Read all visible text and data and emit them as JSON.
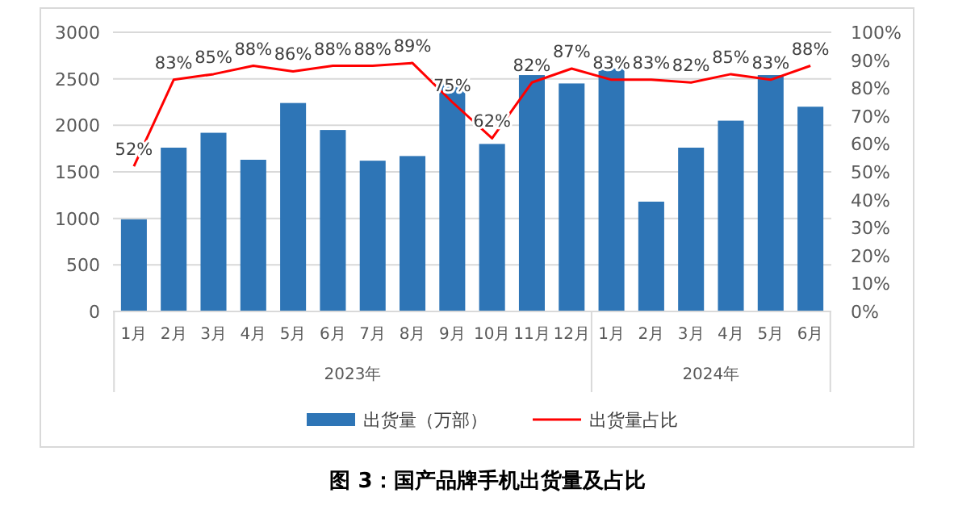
{
  "chart_data": {
    "type": "bar",
    "title": "图 3：国产品牌手机出货量及占比",
    "categories": [
      "1月",
      "2月",
      "3月",
      "4月",
      "5月",
      "6月",
      "7月",
      "8月",
      "9月",
      "10月",
      "11月",
      "12月",
      "1月",
      "2月",
      "3月",
      "4月",
      "5月",
      "6月"
    ],
    "series": [
      {
        "name": "出货量（万部）",
        "color": "#2e75b6",
        "values": [
          990,
          1760,
          1920,
          1630,
          2240,
          1950,
          1620,
          1670,
          2490,
          1800,
          2540,
          2450,
          2610,
          1180,
          1760,
          2050,
          2540,
          2200
        ]
      },
      {
        "name": "出货量占比",
        "type": "line",
        "axis": "y2",
        "color": "#ff0000",
        "values": [
          52,
          83,
          85,
          88,
          86,
          88,
          88,
          89,
          75,
          62,
          82,
          87,
          83,
          83,
          82,
          85,
          83,
          88
        ],
        "value_labels": [
          "52%",
          "83%",
          "85%",
          "88%",
          "86%",
          "88%",
          "88%",
          "89%",
          "75%",
          "62%",
          "82%",
          "87%",
          "83%",
          "83%",
          "82%",
          "85%",
          "83%",
          "88%"
        ]
      }
    ],
    "ylim": [
      0,
      3000
    ],
    "yticks": [
      0,
      500,
      1000,
      1500,
      2000,
      2500,
      3000
    ],
    "y2lim": [
      0,
      100
    ],
    "y2ticks": [
      {
        "value": 0,
        "label": "0%"
      },
      {
        "value": 10,
        "label": "10%"
      },
      {
        "value": 20,
        "label": "20%"
      },
      {
        "value": 30,
        "label": "30%"
      },
      {
        "value": 40,
        "label": "40%"
      },
      {
        "value": 50,
        "label": "50%"
      },
      {
        "value": 60,
        "label": "60%"
      },
      {
        "value": 70,
        "label": "70%"
      },
      {
        "value": 80,
        "label": "80%"
      },
      {
        "value": 90,
        "label": "90%"
      },
      {
        "value": 100,
        "label": "100%"
      }
    ],
    "annotations": [
      "2023年",
      "2024年"
    ],
    "grid": "y",
    "legend": "bottom",
    "marker": "none",
    "line_style": "solid"
  }
}
